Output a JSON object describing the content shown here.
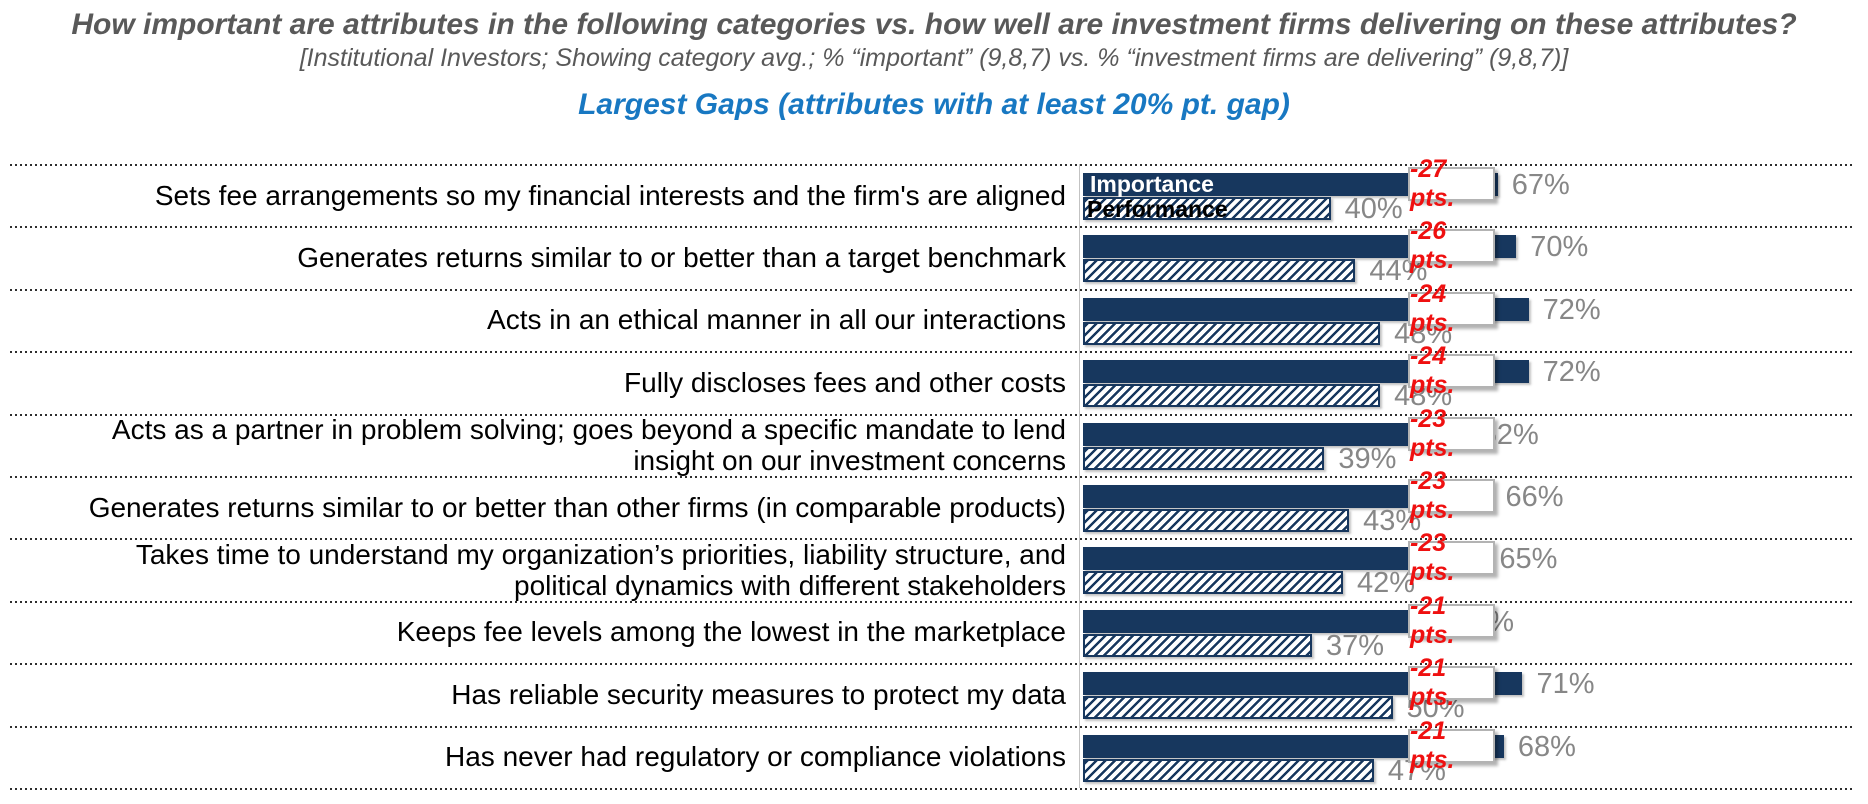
{
  "header": {
    "title": "How important are attributes in the following categories vs. how well are investment firms delivering on these attributes?",
    "subtitle": "[Institutional Investors; Showing category avg.; % “important” (9,8,7) vs. % “investment firms are delivering” (9,8,7)]",
    "section_heading": "Largest Gaps (attributes with at least 20% pt. gap)"
  },
  "colors": {
    "navy_bar": "#17375E",
    "heading_blue": "#1878C2",
    "gap_red": "#EF1010",
    "value_gray": "#878787",
    "title_gray": "#595959"
  },
  "chart_data": {
    "type": "bar",
    "orientation": "horizontal",
    "title": "Largest Gaps (attributes with at least 20% pt. gap)",
    "unit": "percent",
    "value_suffix": "%",
    "xlim": [
      0,
      100
    ],
    "grid": "dotted row separators",
    "legend": {
      "position": "inside first bars",
      "importance_label": "Importance",
      "performance_label": "Performance"
    },
    "series_names": [
      "Importance",
      "Performance"
    ],
    "rows": [
      {
        "label": "Sets fee arrangements so my financial interests and the firm's are aligned",
        "importance": 67,
        "performance": 40,
        "gap_label": "-27 pts."
      },
      {
        "label": "Generates returns similar to or better than a target benchmark",
        "importance": 70,
        "performance": 44,
        "gap_label": "-26 pts."
      },
      {
        "label": "Acts in an ethical manner in all our interactions",
        "importance": 72,
        "performance": 48,
        "gap_label": "-24 pts."
      },
      {
        "label": "Fully discloses fees and other costs",
        "importance": 72,
        "performance": 48,
        "gap_label": "-24 pts."
      },
      {
        "label": "Acts as a partner in problem solving; goes beyond a specific mandate to lend\ninsight on our investment concerns",
        "importance": 62,
        "performance": 39,
        "gap_label": "-23 pts."
      },
      {
        "label": "Generates returns similar to or better than other firms (in comparable products)",
        "importance": 66,
        "performance": 43,
        "gap_label": "-23 pts."
      },
      {
        "label": "Takes time to understand my organization’s priorities, liability structure, and\npolitical dynamics with different stakeholders",
        "importance": 65,
        "performance": 42,
        "gap_label": "-23 pts."
      },
      {
        "label": "Keeps fee levels among the lowest in the marketplace",
        "importance": 58,
        "performance": 37,
        "gap_label": "-21 pts."
      },
      {
        "label": "Has reliable security measures to protect my data",
        "importance": 71,
        "performance": 50,
        "gap_label": "-21 pts."
      },
      {
        "label": "Has never had regulatory or compliance violations",
        "importance": 68,
        "performance": 47,
        "gap_label": "-21 pts."
      }
    ]
  }
}
